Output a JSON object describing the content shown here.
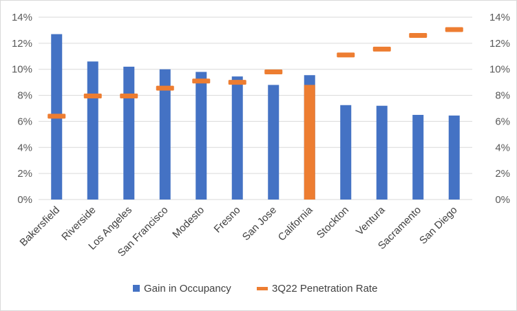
{
  "chart_data": {
    "type": "bar",
    "categories": [
      "Bakersfield",
      "Riverside",
      "Los Angeles",
      "San Francisco",
      "Modesto",
      "Fresno",
      "San Jose",
      "California",
      "Stockton",
      "Ventura",
      "Sacramento",
      "San Diego"
    ],
    "series": [
      {
        "name": "Gain in Occupancy",
        "kind": "bar",
        "color": "#4472c4",
        "highlight_color": "#ed7d31",
        "highlight_category": "California",
        "values": [
          12.7,
          10.6,
          10.2,
          10.0,
          9.8,
          9.45,
          8.8,
          9.55,
          7.25,
          7.2,
          6.5,
          6.45
        ]
      },
      {
        "name": "3Q22 Penetration Rate",
        "kind": "marker",
        "color": "#ed7d31",
        "values": [
          6.4,
          7.95,
          7.95,
          8.55,
          9.1,
          9.0,
          9.8,
          8.8,
          11.1,
          11.55,
          12.6,
          13.05
        ]
      }
    ],
    "y_left": {
      "ticks": [
        "0%",
        "2%",
        "4%",
        "6%",
        "8%",
        "10%",
        "12%",
        "14%"
      ],
      "ylim": [
        0,
        14
      ]
    },
    "y_right": {
      "ticks": [
        "0%",
        "2%",
        "4%",
        "6%",
        "8%",
        "10%",
        "12%",
        "14%"
      ],
      "ylim": [
        0,
        14
      ]
    },
    "grid": true,
    "legend_position": "bottom",
    "title": "",
    "xlabel": "",
    "ylabel": ""
  }
}
